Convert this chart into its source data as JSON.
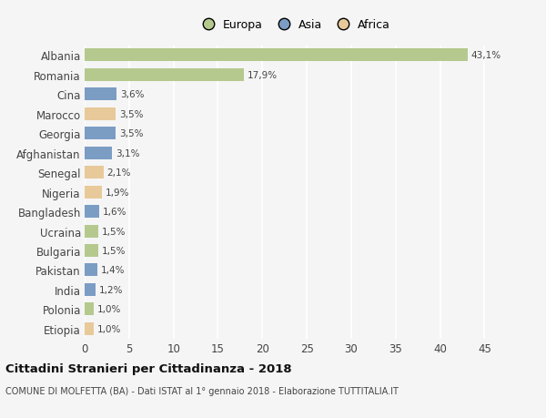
{
  "categories": [
    "Etiopia",
    "Polonia",
    "India",
    "Pakistan",
    "Bulgaria",
    "Ucraina",
    "Bangladesh",
    "Nigeria",
    "Senegal",
    "Afghanistan",
    "Georgia",
    "Marocco",
    "Cina",
    "Romania",
    "Albania"
  ],
  "values": [
    1.0,
    1.0,
    1.2,
    1.4,
    1.5,
    1.5,
    1.6,
    1.9,
    2.1,
    3.1,
    3.5,
    3.5,
    3.6,
    17.9,
    43.1
  ],
  "labels": [
    "1,0%",
    "1,0%",
    "1,2%",
    "1,4%",
    "1,5%",
    "1,5%",
    "1,6%",
    "1,9%",
    "2,1%",
    "3,1%",
    "3,5%",
    "3,5%",
    "3,6%",
    "17,9%",
    "43,1%"
  ],
  "colors": [
    "#e8c99a",
    "#b5c98e",
    "#7b9dc4",
    "#7b9dc4",
    "#b5c98e",
    "#b5c98e",
    "#7b9dc4",
    "#e8c99a",
    "#e8c99a",
    "#7b9dc4",
    "#7b9dc4",
    "#e8c99a",
    "#7b9dc4",
    "#b5c98e",
    "#b5c98e"
  ],
  "continent": [
    "Africa",
    "Europa",
    "Asia",
    "Asia",
    "Europa",
    "Europa",
    "Asia",
    "Africa",
    "Africa",
    "Asia",
    "Asia",
    "Africa",
    "Asia",
    "Europa",
    "Europa"
  ],
  "legend_labels": [
    "Europa",
    "Asia",
    "Africa"
  ],
  "legend_colors": [
    "#b5c98e",
    "#7b9dc4",
    "#e8c99a"
  ],
  "title": "Cittadini Stranieri per Cittadinanza - 2018",
  "subtitle": "COMUNE DI MOLFETTA (BA) - Dati ISTAT al 1° gennaio 2018 - Elaborazione TUTTITALIA.IT",
  "xlim": [
    0,
    47
  ],
  "xticks": [
    0,
    5,
    10,
    15,
    20,
    25,
    30,
    35,
    40,
    45
  ],
  "background_color": "#f5f5f5",
  "grid_color": "#ffffff",
  "bar_height": 0.65
}
